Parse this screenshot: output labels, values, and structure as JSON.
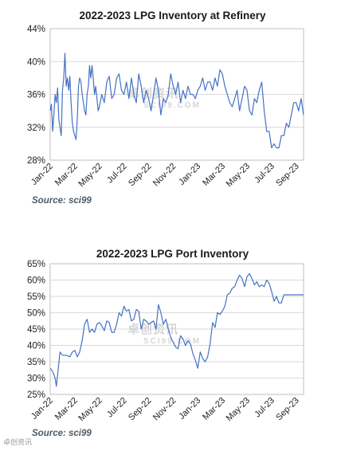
{
  "chart_data": [
    {
      "type": "line",
      "title": "2022-2023  LPG Inventory at Refinery",
      "source": "Source: sci99",
      "watermark": "卓创资讯",
      "watermark_en": "SCI99.COM",
      "y_ticks": [
        "44%",
        "40%",
        "36%",
        "32%",
        "28%"
      ],
      "ylim": [
        28,
        44
      ],
      "x_ticks": [
        "Jan-22",
        "Mar-22",
        "May-22",
        "Jul-22",
        "Sep-22",
        "Nov-22",
        "Jan-23",
        "Mar-23",
        "May-23",
        "Jul-23",
        "Sep-23"
      ],
      "xlim": [
        0,
        20.6
      ],
      "grid": true,
      "series": [
        {
          "color": "#4472c4",
          "x": [
            0,
            0.1,
            0.2,
            0.3,
            0.4,
            0.5,
            0.6,
            0.7,
            0.8,
            0.9,
            1.0,
            1.1,
            1.2,
            1.3,
            1.4,
            1.5,
            1.6,
            1.7,
            1.8,
            1.9,
            2.0,
            2.1,
            2.2,
            2.3,
            2.4,
            2.5,
            2.6,
            2.7,
            2.8,
            2.9,
            3.0,
            3.1,
            3.2,
            3.3,
            3.4,
            3.5,
            3.6,
            3.7,
            3.8,
            3.9,
            4.0,
            4.2,
            4.4,
            4.6,
            4.8,
            5.0,
            5.2,
            5.4,
            5.6,
            5.8,
            6.0,
            6.2,
            6.4,
            6.6,
            6.8,
            7.0,
            7.2,
            7.4,
            7.6,
            7.8,
            8.0,
            8.2,
            8.4,
            8.6,
            8.8,
            9.0,
            9.2,
            9.4,
            9.6,
            9.8,
            10.0,
            10.2,
            10.4,
            10.6,
            10.8,
            11.0,
            11.2,
            11.4,
            11.6,
            11.8,
            12.0,
            12.2,
            12.4,
            12.6,
            12.8,
            13.0,
            13.2,
            13.4,
            13.6,
            13.8,
            14.0,
            14.2,
            14.4,
            14.6,
            14.8,
            15.0,
            15.2,
            15.4,
            15.6,
            15.8,
            16.0,
            16.2,
            16.4,
            16.6,
            16.8,
            17.0,
            17.2,
            17.4,
            17.6,
            17.8,
            18.0,
            18.2,
            18.4,
            18.6,
            18.8,
            19.0,
            19.2,
            19.4,
            19.6,
            19.8,
            20.0,
            20.2,
            20.4,
            20.6
          ],
          "values": [
            34,
            34.8,
            31.5,
            33.5,
            36,
            35,
            36.8,
            33,
            32,
            31,
            36.5,
            38,
            41,
            37,
            38,
            36.5,
            38.2,
            35,
            32.5,
            31.5,
            31,
            30.5,
            33,
            37,
            38,
            37.5,
            36,
            35,
            34,
            33.5,
            36,
            37,
            39.5,
            38,
            39.5,
            38,
            36,
            37,
            35.5,
            34,
            34.5,
            36,
            35,
            37.5,
            38.2,
            35.5,
            36,
            38,
            38.5,
            36.5,
            36,
            37.5,
            35.5,
            38,
            36,
            35,
            38.5,
            37,
            35,
            36.5,
            35.5,
            34,
            36,
            38,
            36.5,
            33.5,
            35.5,
            35,
            36,
            38.5,
            37,
            36,
            37.5,
            35,
            36.5,
            35.5,
            37,
            36,
            36,
            35.5,
            36.5,
            37,
            38,
            36.5,
            37.5,
            37.5,
            36.5,
            38,
            37,
            39,
            38.5,
            37,
            36,
            35,
            34.5,
            35.5,
            36.5,
            34,
            35.5,
            37,
            36.5,
            34,
            33.5,
            35.5,
            35,
            36.5,
            37.5,
            34,
            31.5,
            31.5,
            29.5,
            30,
            29.5,
            29.5,
            31,
            31,
            32.5,
            32,
            33.5,
            35,
            35,
            34,
            35.5,
            33.5
          ]
        }
      ]
    },
    {
      "type": "line",
      "title": "2022-2023  LPG Port Inventory",
      "source": "Source: sci99",
      "watermark": "卓创资讯",
      "watermark_en": "SCI99.COM",
      "y_ticks": [
        "65%",
        "60%",
        "55%",
        "50%",
        "45%",
        "40%",
        "35%",
        "30%",
        "25%"
      ],
      "ylim": [
        25,
        65
      ],
      "x_ticks": [
        "Jan-22",
        "Mar-22",
        "May-22",
        "Jul-22",
        "Sep-22",
        "Nov-22",
        "Jan-23",
        "Mar-23",
        "May-23",
        "Jul-23",
        "Sep-23"
      ],
      "xlim": [
        0,
        20.6
      ],
      "grid": true,
      "series": [
        {
          "color": "#4472c4",
          "x": [
            0,
            0.2,
            0.4,
            0.5,
            0.6,
            0.8,
            1.0,
            1.3,
            1.6,
            1.8,
            2.0,
            2.2,
            2.4,
            2.6,
            2.8,
            3.0,
            3.2,
            3.4,
            3.6,
            3.8,
            4.0,
            4.2,
            4.4,
            4.6,
            4.8,
            5.0,
            5.2,
            5.4,
            5.6,
            5.8,
            6.0,
            6.2,
            6.4,
            6.6,
            6.8,
            7.0,
            7.2,
            7.4,
            7.6,
            7.8,
            8.0,
            8.2,
            8.4,
            8.6,
            8.8,
            9.0,
            9.2,
            9.4,
            9.6,
            9.8,
            10.0,
            10.2,
            10.4,
            10.6,
            10.8,
            11.0,
            11.2,
            11.4,
            11.6,
            11.8,
            12.0,
            12.2,
            12.4,
            12.6,
            12.8,
            13.0,
            13.2,
            13.4,
            13.6,
            13.8,
            14.0,
            14.2,
            14.4,
            14.6,
            14.8,
            15.0,
            15.2,
            15.4,
            15.6,
            15.8,
            16.0,
            16.2,
            16.4,
            16.6,
            16.8,
            17.0,
            17.2,
            17.4,
            17.6,
            17.8,
            18.0,
            18.2,
            18.4,
            18.6,
            18.8,
            19.0,
            19.2,
            19.4,
            19.6,
            19.8,
            20.0,
            20.2,
            20.4,
            20.6
          ],
          "values": [
            33,
            32,
            30,
            27.5,
            31,
            38,
            37,
            37,
            36.5,
            38,
            38.5,
            36.5,
            38,
            41.5,
            46.5,
            48,
            44,
            45,
            44,
            46.5,
            47,
            46,
            44.5,
            47.5,
            47,
            44,
            44,
            46.5,
            50,
            49,
            52,
            50.5,
            51,
            47.5,
            48,
            51,
            50.5,
            45,
            48,
            47.5,
            46.5,
            47,
            47.5,
            45,
            52.5,
            50,
            46.5,
            48,
            45,
            42.5,
            41,
            39.5,
            39,
            43,
            42,
            40,
            41.5,
            40.5,
            37.5,
            35.5,
            33,
            38,
            36,
            35,
            36.5,
            40.5,
            47,
            45.5,
            50,
            49.5,
            50.5,
            52,
            55.5,
            56,
            57.5,
            58,
            60,
            61.5,
            60.5,
            58,
            61,
            62,
            60.5,
            58.5,
            59.5,
            58,
            58.5,
            58,
            60,
            59,
            56.5,
            53.5,
            55,
            53,
            53,
            55.5,
            55.5,
            55.5,
            55.5,
            55.5,
            55.5,
            55.5,
            55.5,
            55.5
          ]
        }
      ]
    }
  ],
  "corner_logo": "卓创资讯"
}
